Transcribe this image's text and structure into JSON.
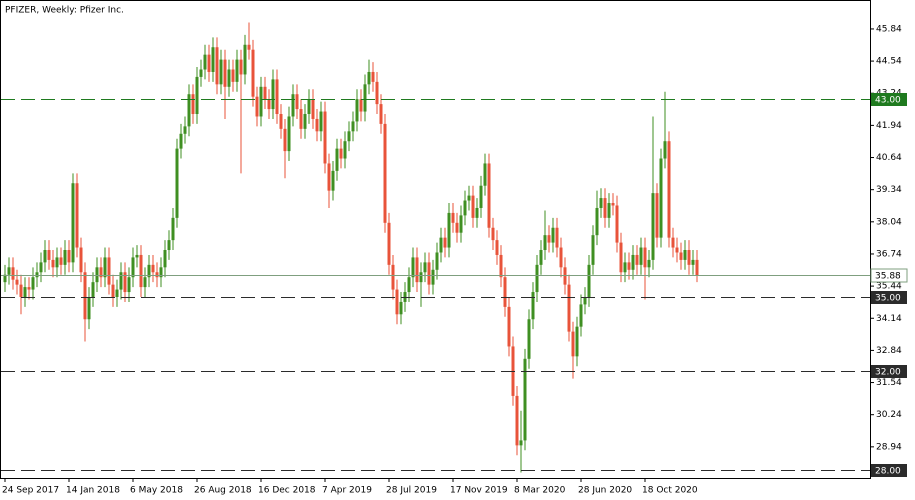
{
  "chart_data": {
    "type": "candlestick",
    "title": "PFIZER, Weekly:  Pfizer Inc.",
    "categories": [
      "24 Sep 2017",
      null,
      null,
      null,
      null,
      null,
      null,
      null,
      null,
      null,
      null,
      null,
      null,
      null,
      null,
      null,
      "14 Jan 2018",
      null,
      null,
      null,
      null,
      null,
      null,
      null,
      null,
      null,
      null,
      null,
      null,
      null,
      null,
      null,
      "6 May 2018",
      null,
      null,
      null,
      null,
      null,
      null,
      null,
      null,
      null,
      null,
      null,
      null,
      null,
      null,
      null,
      "26 Aug 2018",
      null,
      null,
      null,
      null,
      null,
      null,
      null,
      null,
      null,
      null,
      null,
      null,
      null,
      null,
      null,
      "16 Dec 2018",
      null,
      null,
      null,
      null,
      null,
      null,
      null,
      null,
      null,
      null,
      null,
      null,
      null,
      null,
      null,
      "7 Apr 2019",
      null,
      null,
      null,
      null,
      null,
      null,
      null,
      null,
      null,
      null,
      null,
      null,
      null,
      null,
      null,
      "28 Jul 2019",
      null,
      null,
      null,
      null,
      null,
      null,
      null,
      null,
      null,
      null,
      null,
      null,
      null,
      null,
      null,
      "17 Nov 2019",
      null,
      null,
      null,
      null,
      null,
      null,
      null,
      null,
      null,
      null,
      null,
      null,
      null,
      null,
      null,
      "8 Mar 2020",
      null,
      null,
      null,
      null,
      null,
      null,
      null,
      null,
      null,
      null,
      null,
      null,
      null,
      null,
      null,
      "28 Jun 2020",
      null,
      null,
      null,
      null,
      null,
      null,
      null,
      null,
      null,
      null,
      null,
      null,
      null,
      null,
      null,
      "18 Oct 2020",
      null,
      null,
      null,
      null,
      null,
      null,
      null,
      null,
      null,
      null,
      null,
      null,
      null
    ],
    "open": [
      35.6,
      35.9,
      36.2,
      35.7,
      35.5,
      35.0,
      35.4,
      35.3,
      35.8,
      36.0,
      36.4,
      36.9,
      36.5,
      36.2,
      36.6,
      36.3,
      36.9,
      36.4,
      39.6,
      37.0,
      36.0,
      34.1,
      35.0,
      35.6,
      36.2,
      35.8,
      36.6,
      35.5,
      35.0,
      35.3,
      36.0,
      35.2,
      35.8,
      36.6,
      36.7,
      35.4,
      35.8,
      36.3,
      36.0,
      35.8,
      36.2,
      36.9,
      37.3,
      38.2,
      41.0,
      41.6,
      41.9,
      43.2,
      42.4,
      43.9,
      44.2,
      44.8,
      44.1,
      45.1,
      43.6,
      44.6,
      43.5,
      44.2,
      43.7,
      44.6,
      44.0,
      45.2,
      45.0,
      43.1,
      42.3,
      43.5,
      43.0,
      42.6,
      43.8,
      42.4,
      41.8,
      40.9,
      42.3,
      43.2,
      42.6,
      41.8,
      42.4,
      43.0,
      42.2,
      41.7,
      42.5,
      40.4,
      39.3,
      40.1,
      41.0,
      40.6,
      41.3,
      41.7,
      42.1,
      43.0,
      42.5,
      43.6,
      44.1,
      43.7,
      42.8,
      42.0,
      38.0,
      36.3,
      35.3,
      34.3,
      34.8,
      35.2,
      35.8,
      36.6,
      35.6,
      36.0,
      36.4,
      35.5,
      36.1,
      36.8,
      37.4,
      37.0,
      38.4,
      38.0,
      37.6,
      38.3,
      38.9,
      39.1,
      38.2,
      38.6,
      39.5,
      40.4,
      37.8,
      37.3,
      36.7,
      35.8,
      34.6,
      33.0,
      31.0,
      29.0,
      29.2,
      32.5,
      34.1,
      35.2,
      36.3,
      36.9,
      37.5,
      37.2,
      37.8,
      37.0,
      36.2,
      35.5,
      33.6,
      32.6,
      33.8,
      34.7,
      35.0,
      36.3,
      37.5,
      38.6,
      39.0,
      38.2,
      38.8,
      38.7,
      37.2,
      36.0,
      36.4,
      36.1,
      36.7,
      36.3,
      37.0,
      36.2,
      36.5,
      39.2,
      37.4,
      40.6,
      41.3,
      37.4,
      37.0,
      36.8,
      36.5,
      36.9,
      36.3,
      36.5
    ],
    "high": [
      36.3,
      36.6,
      36.6,
      36.1,
      35.9,
      35.8,
      35.8,
      36.2,
      36.4,
      36.8,
      37.3,
      37.3,
      36.9,
      37.0,
      37.0,
      37.3,
      37.3,
      40.0,
      40.0,
      37.4,
      36.4,
      35.4,
      36.0,
      36.6,
      36.6,
      37.0,
      37.0,
      35.9,
      35.7,
      36.4,
      36.4,
      36.2,
      37.0,
      37.1,
      37.1,
      36.2,
      36.7,
      36.7,
      36.4,
      36.6,
      37.3,
      37.7,
      38.6,
      41.4,
      42.0,
      42.3,
      43.6,
      43.6,
      44.3,
      44.6,
      45.2,
      45.2,
      45.5,
      45.5,
      45.0,
      45.0,
      44.6,
      44.6,
      45.0,
      45.0,
      45.6,
      46.1,
      45.4,
      43.5,
      43.9,
      43.9,
      43.4,
      44.2,
      44.2,
      42.8,
      42.2,
      42.7,
      43.6,
      43.6,
      43.0,
      42.8,
      43.4,
      43.4,
      42.6,
      42.9,
      42.9,
      40.8,
      40.5,
      41.4,
      41.4,
      41.7,
      42.1,
      42.5,
      43.4,
      43.4,
      44.0,
      44.6,
      44.5,
      44.1,
      43.2,
      42.4,
      38.4,
      36.7,
      35.7,
      35.2,
      35.6,
      36.2,
      37.0,
      37.0,
      36.4,
      36.8,
      36.8,
      36.5,
      37.2,
      37.8,
      37.8,
      38.8,
      38.8,
      38.4,
      38.7,
      39.3,
      39.5,
      39.5,
      39.0,
      39.9,
      40.8,
      40.8,
      38.2,
      37.7,
      37.1,
      36.2,
      35.0,
      33.4,
      31.4,
      30.4,
      32.9,
      34.5,
      35.6,
      36.7,
      37.3,
      38.5,
      37.9,
      38.2,
      38.2,
      37.4,
      36.6,
      35.9,
      34.0,
      34.2,
      35.1,
      35.4,
      36.7,
      37.9,
      39.3,
      39.4,
      39.4,
      39.2,
      39.2,
      39.1,
      37.6,
      36.8,
      36.8,
      37.1,
      37.1,
      37.4,
      37.4,
      36.9,
      42.3,
      39.6,
      41.0,
      43.3,
      41.7,
      37.8,
      37.4,
      37.2,
      37.3,
      37.3,
      36.9,
      36.9
    ],
    "low": [
      35.2,
      35.5,
      35.3,
      35.1,
      34.3,
      34.6,
      34.9,
      34.9,
      35.4,
      35.6,
      36.0,
      36.1,
      35.8,
      35.8,
      35.9,
      35.9,
      36.0,
      36.0,
      36.6,
      35.6,
      33.2,
      33.7,
      34.6,
      35.2,
      35.4,
      35.4,
      35.1,
      34.6,
      34.6,
      34.9,
      34.8,
      34.8,
      35.4,
      36.2,
      35.0,
      35.0,
      35.4,
      35.6,
      35.4,
      35.4,
      35.8,
      36.5,
      36.9,
      37.8,
      40.6,
      41.2,
      41.5,
      42.0,
      42.0,
      43.5,
      43.8,
      43.7,
      43.7,
      43.2,
      43.2,
      42.2,
      43.1,
      43.3,
      43.3,
      40.0,
      43.6,
      44.6,
      42.7,
      41.9,
      41.9,
      42.6,
      42.2,
      42.2,
      42.0,
      41.4,
      39.8,
      40.5,
      41.9,
      42.2,
      41.4,
      41.4,
      42.0,
      41.8,
      41.3,
      41.3,
      40.0,
      38.6,
      38.9,
      39.7,
      40.2,
      40.2,
      40.9,
      41.3,
      41.7,
      42.1,
      42.1,
      43.2,
      43.3,
      42.4,
      41.6,
      37.6,
      35.9,
      34.9,
      33.9,
      33.9,
      34.4,
      34.8,
      35.4,
      35.2,
      34.6,
      35.6,
      35.1,
      35.1,
      35.7,
      36.4,
      36.6,
      36.6,
      37.6,
      37.2,
      37.2,
      37.9,
      38.5,
      37.8,
      37.8,
      38.2,
      39.1,
      37.4,
      36.9,
      36.3,
      35.4,
      34.2,
      32.6,
      30.6,
      28.6,
      27.9,
      28.8,
      32.1,
      33.7,
      34.8,
      35.9,
      36.5,
      36.8,
      36.8,
      36.6,
      35.8,
      35.1,
      33.2,
      31.7,
      32.2,
      33.4,
      34.3,
      34.6,
      35.9,
      37.1,
      38.2,
      37.8,
      37.8,
      38.3,
      36.8,
      35.6,
      35.6,
      35.7,
      35.7,
      35.9,
      35.9,
      34.9,
      35.8,
      36.1,
      37.0,
      37.0,
      40.2,
      37.0,
      36.6,
      36.4,
      36.1,
      36.1,
      35.9,
      35.9,
      35.6
    ],
    "close": [
      35.9,
      36.2,
      35.7,
      35.5,
      35.0,
      35.4,
      35.3,
      35.8,
      36.0,
      36.4,
      36.9,
      36.5,
      36.2,
      36.6,
      36.3,
      36.9,
      36.4,
      39.6,
      37.0,
      36.0,
      34.1,
      35.0,
      35.6,
      36.2,
      35.8,
      36.6,
      35.5,
      35.0,
      35.3,
      36.0,
      35.2,
      35.8,
      36.6,
      36.7,
      35.4,
      35.8,
      36.3,
      36.0,
      35.8,
      36.2,
      36.9,
      37.3,
      38.2,
      41.0,
      41.6,
      41.9,
      43.2,
      42.4,
      43.9,
      44.2,
      44.8,
      44.1,
      45.1,
      43.6,
      44.6,
      43.5,
      44.2,
      43.7,
      44.6,
      44.0,
      45.2,
      45.0,
      43.1,
      42.3,
      43.5,
      43.0,
      42.6,
      43.8,
      42.4,
      41.8,
      40.9,
      42.3,
      43.2,
      42.6,
      41.8,
      42.4,
      43.0,
      42.2,
      41.7,
      42.5,
      40.4,
      39.3,
      40.1,
      41.0,
      40.6,
      41.3,
      41.7,
      42.1,
      43.0,
      42.5,
      43.6,
      44.1,
      43.7,
      42.8,
      42.0,
      38.0,
      36.3,
      35.3,
      34.3,
      34.8,
      35.2,
      35.8,
      36.6,
      35.6,
      36.0,
      36.4,
      35.5,
      36.1,
      36.8,
      37.4,
      37.0,
      38.4,
      38.0,
      37.6,
      38.3,
      38.9,
      39.1,
      38.2,
      38.6,
      39.5,
      40.4,
      37.8,
      37.3,
      36.7,
      35.8,
      34.6,
      33.0,
      31.0,
      29.0,
      29.2,
      32.5,
      34.1,
      35.2,
      36.3,
      36.9,
      37.5,
      37.2,
      37.8,
      37.0,
      36.2,
      35.5,
      33.6,
      32.6,
      33.8,
      34.7,
      35.0,
      36.3,
      37.5,
      38.6,
      39.0,
      38.2,
      38.8,
      38.7,
      37.2,
      36.0,
      36.4,
      36.1,
      36.7,
      36.3,
      37.0,
      36.2,
      36.5,
      39.2,
      37.4,
      40.6,
      41.3,
      37.4,
      37.0,
      36.8,
      36.5,
      36.9,
      36.3,
      36.5,
      35.88
    ],
    "up_color": "#3f8f22",
    "down_color": "#e8533a",
    "ylim": [
      27.68,
      46.97
    ],
    "yticks": [
      45.84,
      44.54,
      43.24,
      41.94,
      40.64,
      39.34,
      38.04,
      36.74,
      35.44,
      34.14,
      32.84,
      31.54,
      30.24,
      28.94
    ],
    "levels": [
      {
        "value": 43,
        "label": "43.00",
        "color": "#1f7a1f"
      },
      {
        "value": 35,
        "label": "35.00",
        "color": "#2b2b2b"
      },
      {
        "value": 32,
        "label": "32.00",
        "color": "#2b2b2b"
      },
      {
        "value": 28,
        "label": "28.00",
        "color": "#2b2b2b"
      }
    ],
    "last_price": {
      "value": 35.88,
      "label": "35.88",
      "color": "#7f9f7f"
    }
  }
}
